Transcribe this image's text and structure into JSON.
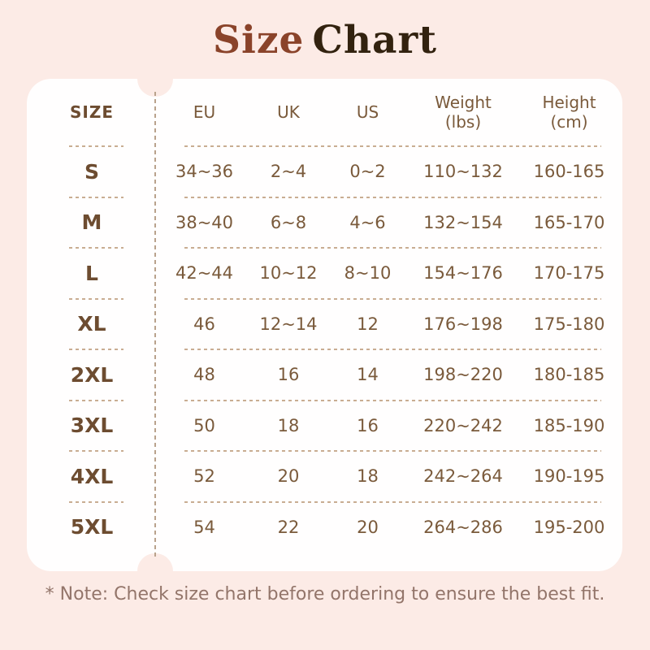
{
  "title": {
    "part1": "Size",
    "part2": "Chart"
  },
  "table": {
    "headers": {
      "size": "SIZE",
      "eu": "EU",
      "uk": "UK",
      "us": "US",
      "weight_line1": "Weight",
      "weight_line2": "(lbs)",
      "height_line1": "Height",
      "height_line2": "(cm)"
    },
    "rows": [
      {
        "size": "S",
        "eu": "34~36",
        "uk": "2~4",
        "us": "0~2",
        "weight": "110~132",
        "height": "160-165"
      },
      {
        "size": "M",
        "eu": "38~40",
        "uk": "6~8",
        "us": "4~6",
        "weight": "132~154",
        "height": "165-170"
      },
      {
        "size": "L",
        "eu": "42~44",
        "uk": "10~12",
        "us": "8~10",
        "weight": "154~176",
        "height": "170-175"
      },
      {
        "size": "XL",
        "eu": "46",
        "uk": "12~14",
        "us": "12",
        "weight": "176~198",
        "height": "175-180"
      },
      {
        "size": "2XL",
        "eu": "48",
        "uk": "16",
        "us": "14",
        "weight": "198~220",
        "height": "180-185"
      },
      {
        "size": "3XL",
        "eu": "50",
        "uk": "18",
        "us": "16",
        "weight": "220~242",
        "height": "185-190"
      },
      {
        "size": "4XL",
        "eu": "52",
        "uk": "20",
        "us": "18",
        "weight": "242~264",
        "height": "190-195"
      },
      {
        "size": "5XL",
        "eu": "54",
        "uk": "22",
        "us": "20",
        "weight": "264~286",
        "height": "195-200"
      }
    ]
  },
  "note": "* Note: Check size chart before ordering to ensure the best fit.",
  "colors": {
    "background": "#fcebe6",
    "card": "#fffefe",
    "title_primary": "#8a432a",
    "title_secondary": "#32220f",
    "table_text": "#7a5a3b",
    "size_text": "#6d4c30",
    "divider": "#c9ad92",
    "note_text": "#93756a"
  }
}
